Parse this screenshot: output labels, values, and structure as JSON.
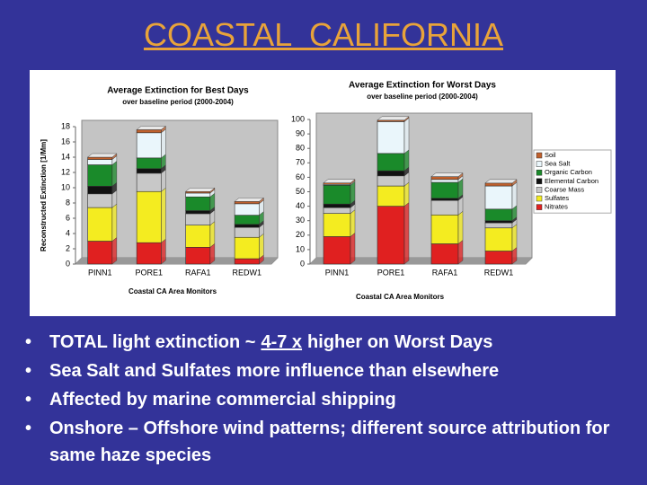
{
  "title": "COASTAL  CALIFORNIA",
  "chart_data": [
    {
      "type": "bar",
      "stacked": true,
      "legend": false,
      "title": "Average Extinction for Best Days",
      "subtitle": "over baseline period (2000-2004)",
      "ylabel": "Reconstructed Extinction [1/Mm]",
      "xlabel": "Coastal CA Area Monitors",
      "categories": [
        "PINN1",
        "PORE1",
        "RAFA1",
        "REDW1"
      ],
      "ylim": [
        0,
        18
      ],
      "yticks": [
        0,
        2,
        4,
        6,
        8,
        10,
        12,
        14,
        16,
        18
      ],
      "series": [
        {
          "name": "Nitrates",
          "color": "#e02020",
          "values": [
            3.0,
            2.8,
            2.2,
            0.7
          ]
        },
        {
          "name": "Sulfates",
          "color": "#f4ec20",
          "values": [
            4.4,
            6.7,
            2.9,
            2.8
          ]
        },
        {
          "name": "Coarse Mass",
          "color": "#c8c8c8",
          "values": [
            1.8,
            2.4,
            1.5,
            1.3
          ]
        },
        {
          "name": "Elemental Carbon",
          "color": "#111111",
          "values": [
            1.0,
            0.6,
            0.4,
            0.4
          ]
        },
        {
          "name": "Organic Carbon",
          "color": "#1a8a2a",
          "values": [
            2.8,
            1.4,
            1.8,
            1.2
          ]
        },
        {
          "name": "Sea Salt",
          "color": "#eaf6fb",
          "values": [
            0.7,
            3.3,
            0.5,
            1.5
          ]
        },
        {
          "name": "Soil",
          "color": "#c0602c",
          "values": [
            0.3,
            0.4,
            0.2,
            0.3
          ]
        }
      ]
    },
    {
      "type": "bar",
      "stacked": true,
      "legend": true,
      "legend_position": "right",
      "title": "Average Extinction for Worst Days",
      "subtitle": "over baseline period (2000-2004)",
      "xlabel": "Coastal CA Area Monitors",
      "categories": [
        "PINN1",
        "PORE1",
        "RAFA1",
        "REDW1"
      ],
      "ylim": [
        0,
        100
      ],
      "yticks": [
        0,
        10,
        20,
        30,
        40,
        50,
        60,
        70,
        80,
        90,
        100
      ],
      "series": [
        {
          "name": "Nitrates",
          "color": "#e02020",
          "values": [
            19,
            40,
            14,
            9
          ]
        },
        {
          "name": "Sulfates",
          "color": "#f4ec20",
          "values": [
            16,
            14,
            20,
            16
          ]
        },
        {
          "name": "Coarse Mass",
          "color": "#c8c8c8",
          "values": [
            4,
            7,
            10,
            3.5
          ]
        },
        {
          "name": "Elemental Carbon",
          "color": "#111111",
          "values": [
            2.5,
            3.5,
            1.5,
            1.5
          ]
        },
        {
          "name": "Organic Carbon",
          "color": "#1a8a2a",
          "values": [
            13,
            12,
            11,
            8
          ]
        },
        {
          "name": "Sea Salt",
          "color": "#eaf6fb",
          "values": [
            0.6,
            22,
            2,
            16
          ]
        },
        {
          "name": "Soil",
          "color": "#c0602c",
          "values": [
            1,
            1,
            2,
            2
          ]
        }
      ]
    }
  ],
  "bullets": [
    [
      "TOTAL light extinction ~",
      "4-7 x",
      "higher on Worst Days"
    ],
    [
      "Sea Salt and Sulfates more influence than elsewhere"
    ],
    [
      "Affected by marine commercial shipping"
    ],
    [
      "Onshore – Offshore wind patterns;  different source attribution for same haze species"
    ]
  ]
}
